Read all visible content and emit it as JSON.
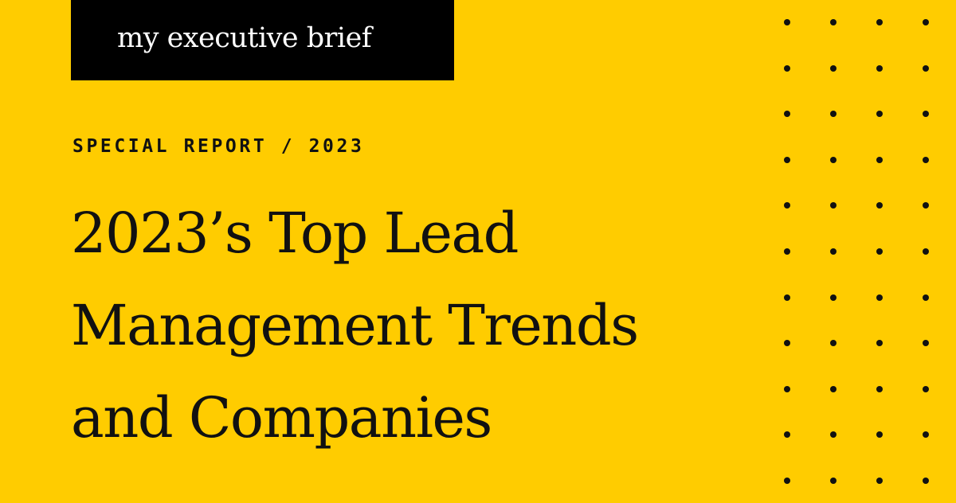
{
  "brand": {
    "name": "my executive brief"
  },
  "eyebrow": "SPECIAL REPORT / 2023",
  "headline": {
    "lines": [
      "2023’s Top Lead",
      "Management Trends",
      "and Companies"
    ]
  },
  "colors": {
    "background": "#FFCC00",
    "brand_box": "#000000",
    "brand_text": "#FFFFFF",
    "text": "#111111",
    "dots": "#111111"
  },
  "decoration": {
    "icon": "dot-grid-pattern",
    "columns": 4,
    "rows": 11
  }
}
